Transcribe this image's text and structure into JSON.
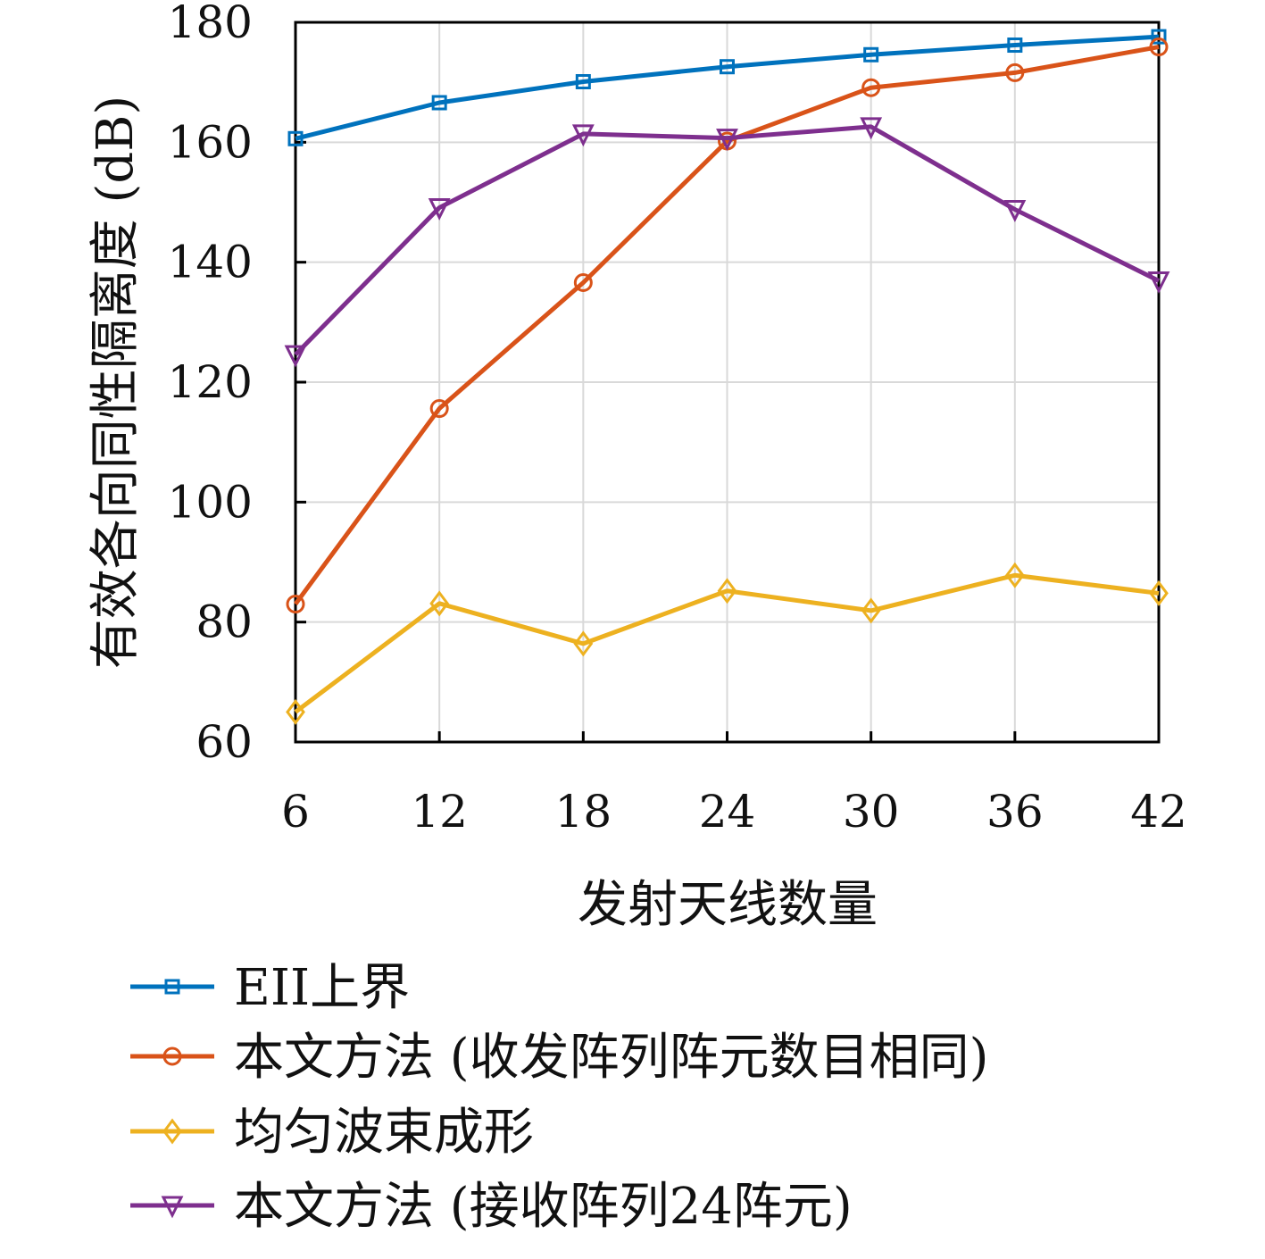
{
  "chart_data": {
    "type": "line",
    "xlabel": "发射天线数量",
    "ylabel": "有效各向同性隔离度 (dB)",
    "x": [
      6,
      12,
      18,
      24,
      30,
      36,
      42
    ],
    "xlim": [
      6,
      42
    ],
    "ylim": [
      60,
      180
    ],
    "xticks": [
      "6",
      "12",
      "18",
      "24",
      "30",
      "36",
      "42"
    ],
    "yticks": [
      "60",
      "80",
      "100",
      "120",
      "140",
      "160",
      "180"
    ],
    "grid": true,
    "legend_position": "bottom",
    "series": [
      {
        "name": "EII上界",
        "color": "#0072BD",
        "marker": "square",
        "values": [
          160.6,
          166.6,
          170.1,
          172.6,
          174.6,
          176.2,
          177.6
        ]
      },
      {
        "name": "本文方法 (收发阵列阵元数目相同)",
        "color": "#D95319",
        "marker": "circle",
        "values": [
          83.0,
          115.6,
          136.6,
          160.2,
          169.1,
          171.6,
          175.9
        ]
      },
      {
        "name": "均匀波束成形",
        "color": "#EDB120",
        "marker": "diamond",
        "values": [
          65.0,
          83.1,
          76.4,
          85.2,
          81.9,
          87.8,
          84.8
        ]
      },
      {
        "name": "本文方法 (接收阵列24阵元)",
        "color": "#7E2F8E",
        "marker": "triangle-down",
        "values": [
          124.6,
          149.1,
          161.4,
          160.7,
          162.6,
          148.8,
          136.9
        ]
      }
    ]
  }
}
